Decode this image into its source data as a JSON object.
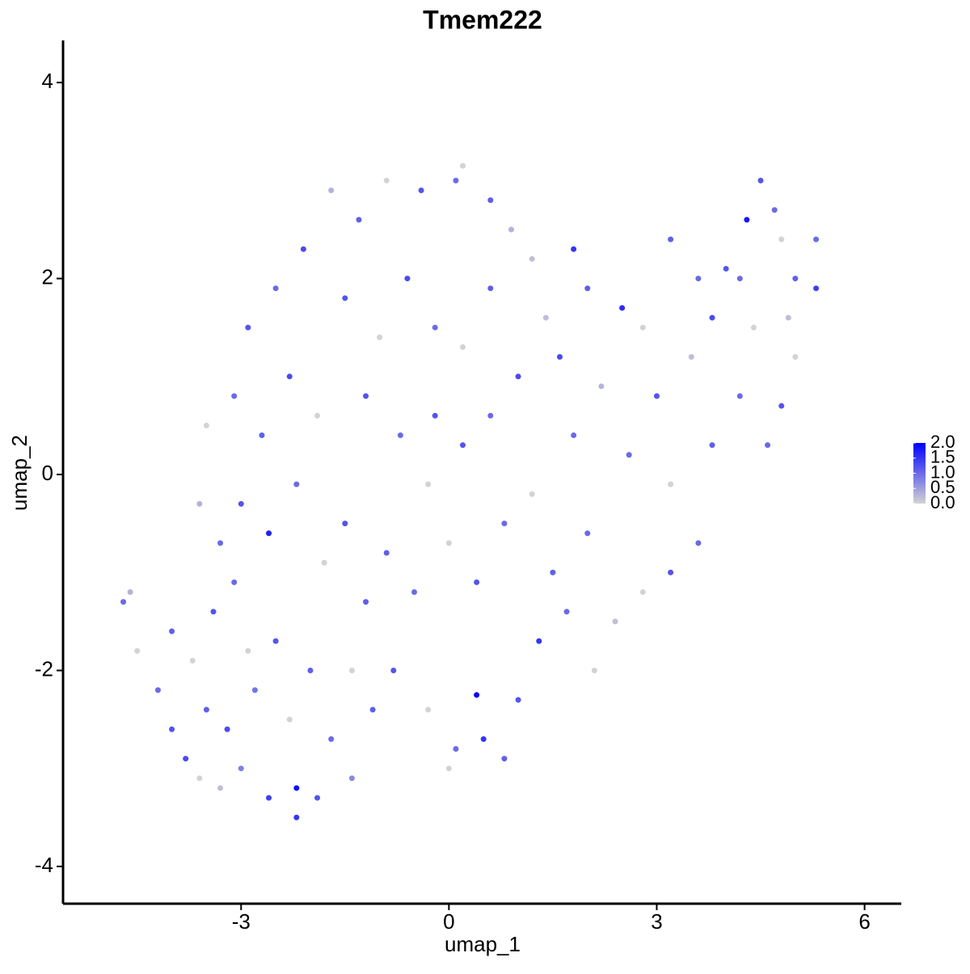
{
  "chart_data": {
    "type": "scatter",
    "title": "Tmem222",
    "x_label": "umap_1",
    "y_label": "umap_2",
    "xlim": [
      -5.57,
      6.53
    ],
    "ylim": [
      -4.38,
      4.43
    ],
    "xticks": [
      -3,
      0,
      3,
      6
    ],
    "yticks": [
      -4,
      -2,
      0,
      2,
      4
    ],
    "color_low": "#d3d3d3",
    "color_high": "#0000ff",
    "clim": [
      0,
      2
    ],
    "cticks": [
      {
        "value": 0,
        "label": "0.0"
      },
      {
        "value": 0.5,
        "label": "0.5"
      },
      {
        "value": 1,
        "label": "1.0"
      },
      {
        "value": 1.5,
        "label": "1.5"
      },
      {
        "value": 2,
        "label": "2.0"
      }
    ],
    "x": [
      -4.7,
      -4.6,
      -4.5,
      -4.2,
      -4.0,
      -3.8,
      -3.6,
      -3.5,
      -3.3,
      -3.0,
      -2.6,
      -2.2,
      -2.2,
      -1.9,
      -1.4,
      -4.0,
      -3.7,
      -3.4,
      -3.1,
      -2.8,
      -2.5,
      -2.3,
      -2.0,
      -1.7,
      -1.4,
      -1.1,
      -3.6,
      -3.3,
      -3.0,
      -2.6,
      -2.2,
      -1.8,
      -1.5,
      -3.5,
      -3.1,
      -2.7,
      -2.3,
      -1.9,
      -2.9,
      -2.5,
      -2.1,
      -1.7,
      -1.3,
      -0.9,
      -0.4,
      0.1,
      0.2,
      0.6,
      0.9,
      1.2,
      -1.5,
      -1.0,
      -0.6,
      -0.2,
      0.2,
      0.6,
      -1.2,
      -0.7,
      -0.3,
      0.2,
      0.6,
      1.0,
      1.4,
      -0.9,
      -0.5,
      0.0,
      0.4,
      0.8,
      1.2,
      -0.8,
      -0.3,
      0.1,
      0.4,
      0.5,
      0.8,
      0.0,
      1.0,
      1.3,
      1.7,
      2.1,
      1.5,
      2.0,
      2.4,
      2.8,
      3.2,
      3.6,
      1.8,
      2.2,
      1.6,
      2.0,
      2.5,
      2.8,
      3.2,
      3.6,
      3.5,
      3.0,
      2.6,
      3.2,
      3.8,
      4.2,
      4.4,
      4.0,
      4.3,
      4.5,
      4.7,
      4.8,
      5.0,
      5.3,
      5.3,
      5.0,
      4.8,
      4.6,
      4.9,
      4.2,
      3.8,
      1.8,
      -3.2,
      -2.9,
      -1.2,
      -0.2
    ],
    "values": [
      -1.3,
      -1.2,
      -1.8,
      -2.2,
      -2.6,
      -2.9,
      -3.1,
      -2.4,
      -3.2,
      -3.0,
      -3.3,
      -3.2,
      -3.5,
      -3.3,
      -3.1,
      -1.6,
      -1.9,
      -1.4,
      -1.1,
      -2.2,
      -1.7,
      -2.5,
      -2.0,
      -2.7,
      -2.0,
      -2.4,
      -0.3,
      -0.7,
      -0.3,
      -0.6,
      -0.1,
      -0.9,
      -0.5,
      0.5,
      0.8,
      0.4,
      1.0,
      0.6,
      1.5,
      1.9,
      2.3,
      2.9,
      2.6,
      3.0,
      2.9,
      3.0,
      3.15,
      2.8,
      2.5,
      2.2,
      1.8,
      1.4,
      2.0,
      1.5,
      1.3,
      1.9,
      0.8,
      0.4,
      -0.1,
      0.3,
      0.6,
      1.0,
      1.6,
      -0.8,
      -1.2,
      -0.7,
      -1.1,
      -0.5,
      -0.2,
      -2.0,
      -2.4,
      -2.8,
      -2.25,
      -2.7,
      -2.9,
      -3.0,
      -2.3,
      -1.7,
      -1.4,
      -2.0,
      -1.0,
      -0.6,
      -1.5,
      -1.2,
      -1.0,
      -0.7,
      0.4,
      0.9,
      1.2,
      1.9,
      1.7,
      1.5,
      2.4,
      2.0,
      1.2,
      0.8,
      0.2,
      -0.1,
      0.3,
      0.8,
      1.5,
      2.1,
      2.6,
      3.0,
      2.7,
      2.4,
      2.0,
      2.4,
      1.9,
      1.2,
      0.7,
      0.3,
      1.6,
      2.0,
      1.6,
      2.3,
      -2.6,
      -1.8,
      -1.3,
      0.6
    ],
    "color_values": [
      1.0,
      0.3,
      0.0,
      1.0,
      1.2,
      1.3,
      0.0,
      1.1,
      0.2,
      0.8,
      1.4,
      1.9,
      1.5,
      1.2,
      0.7,
      1.1,
      0.0,
      1.2,
      1.0,
      0.9,
      1.2,
      0.0,
      1.1,
      1.0,
      0.0,
      1.1,
      0.3,
      1.0,
      1.2,
      1.7,
      1.0,
      0.0,
      1.2,
      0.0,
      1.0,
      1.1,
      1.3,
      0.0,
      1.2,
      1.0,
      1.3,
      0.3,
      1.1,
      0.0,
      1.2,
      1.0,
      0.0,
      1.1,
      0.3,
      0.2,
      1.2,
      0.0,
      1.3,
      1.0,
      0.0,
      1.1,
      1.2,
      1.0,
      0.0,
      1.2,
      1.0,
      1.3,
      0.2,
      1.1,
      1.0,
      0.0,
      1.2,
      1.0,
      0.0,
      1.2,
      0.0,
      1.0,
      2.0,
      1.5,
      1.1,
      0.0,
      1.2,
      1.5,
      1.0,
      0.0,
      1.1,
      1.0,
      0.2,
      0.0,
      1.2,
      1.0,
      1.0,
      0.3,
      1.3,
      1.1,
      1.6,
      0.0,
      1.1,
      1.0,
      0.2,
      1.2,
      1.0,
      0.0,
      1.1,
      1.0,
      0.0,
      1.2,
      1.8,
      1.2,
      1.0,
      0.0,
      1.1,
      1.0,
      1.4,
      0.0,
      1.2,
      1.0,
      0.2,
      1.0,
      1.3,
      1.5,
      1.3,
      0.0,
      1.1,
      1.2
    ]
  }
}
